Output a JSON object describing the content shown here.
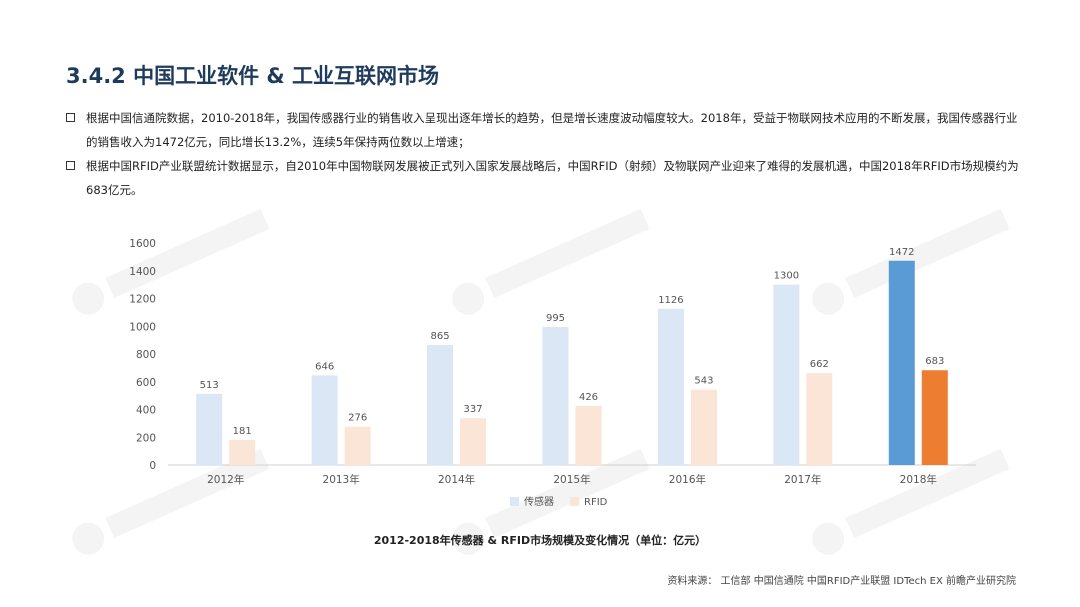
{
  "page": {
    "title": "3.4.2 中国工业软件 & 工业互联网市场",
    "bullets": [
      "根据中国信通院数据，2010-2018年，我国传感器行业的销售收入呈现出逐年增长的趋势，但是增长速度波动幅度较大。2018年，受益于物联网技术应用的不断发展，我国传感器行业的销售收入为1472亿元，同比增长13.2%，连续5年保持两位数以上增速；",
      "根据中国RFID产业联盟统计数据显示，自2010年中国物联网发展被正式列入国家发展战略后，中国RFID（射频）及物联网产业迎来了难得的发展机遇，中国2018年RFID市场规模约为683亿元。"
    ],
    "source": "资料来源：  工信部 中国信通院 中国RFID产业联盟  IDTech EX 前瞻产业研究院"
  },
  "chart_data": {
    "type": "bar",
    "title": "2012-2018年传感器 & RFID市场规模及变化情况（单位：亿元）",
    "categories": [
      "2012年",
      "2013年",
      "2014年",
      "2015年",
      "2016年",
      "2017年",
      "2018年"
    ],
    "series": [
      {
        "name": "传感器",
        "values": [
          513,
          646,
          865,
          995,
          1126,
          1300,
          1472
        ],
        "color": "#dbe7f4",
        "highlight_color": "#5b9bd5"
      },
      {
        "name": "RFID",
        "values": [
          181,
          276,
          337,
          426,
          543,
          662,
          683
        ],
        "color": "#fbe5d6",
        "highlight_color": "#ed7d31"
      }
    ],
    "highlight_index": 6,
    "ylim": [
      0,
      1600
    ],
    "yticks": [
      0,
      200,
      400,
      600,
      800,
      1000,
      1200,
      1400,
      1600
    ],
    "legend": "bottom",
    "grid": false
  }
}
